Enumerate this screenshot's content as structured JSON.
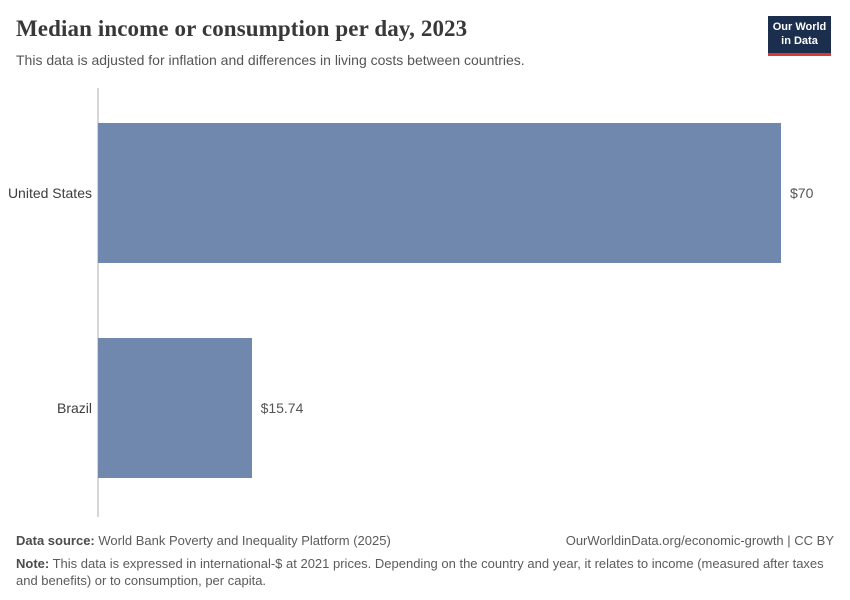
{
  "header": {
    "title": "Median income or consumption per day, 2023",
    "subtitle": "This data is adjusted for inflation and differences in living costs between countries.",
    "logo": {
      "line1": "Our World",
      "line2": "in Data"
    }
  },
  "chart_data": {
    "type": "bar",
    "orientation": "horizontal",
    "title": "Median income or consumption per day, 2023",
    "categories": [
      "United States",
      "Brazil"
    ],
    "values": [
      70,
      15.74
    ],
    "value_labels": [
      "$70",
      "$15.74"
    ],
    "xlabel": "",
    "ylabel": "",
    "xlim": [
      0,
      70
    ],
    "grid": false,
    "legend": false,
    "value_label_position": "outside-end"
  },
  "footer": {
    "datasource_label": "Data source:",
    "datasource_text": "World Bank Poverty and Inequality Platform (2025)",
    "attribution": "OurWorldinData.org/economic-growth | CC BY",
    "note_label": "Note:",
    "note_text": "This data is expressed in international-$ at 2021 prices. Depending on the country and year, it relates to income (measured after taxes and benefits) or to consumption, per capita."
  },
  "colors": {
    "bar": "#7088ae",
    "logo_background": "#1b2e4d",
    "logo_underline": "#d73a35",
    "axis_line": "#d6d6d6"
  }
}
